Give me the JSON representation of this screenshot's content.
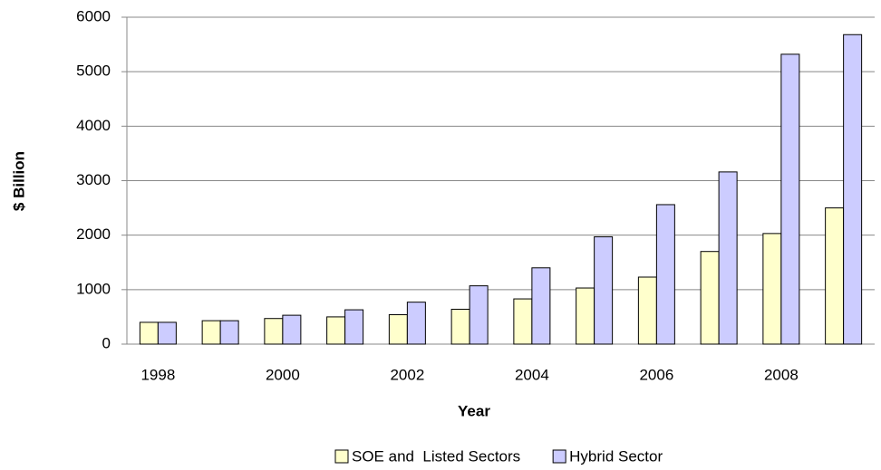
{
  "chart_data": {
    "type": "bar",
    "x_label": "Year",
    "y_label": "$ Billion",
    "categories": [
      "1998",
      null,
      "2000",
      null,
      "2002",
      null,
      "2004",
      null,
      "2006",
      null,
      "2008",
      null
    ],
    "series": [
      {
        "name": "SOE and  Listed Sectors",
        "color": "#ffffcc",
        "values": [
          400,
          430,
          470,
          500,
          540,
          640,
          830,
          1030,
          1230,
          1700,
          2030,
          2500
        ]
      },
      {
        "name": "Hybrid Sector",
        "color": "#ccccff",
        "values": [
          400,
          430,
          530,
          630,
          770,
          1070,
          1400,
          1970,
          2560,
          3160,
          5320,
          5680
        ]
      }
    ],
    "ylim": [
      0,
      6000
    ],
    "yticks": [
      0,
      1000,
      2000,
      3000,
      4000,
      5000,
      6000
    ],
    "grid": true,
    "legend": "bottom"
  }
}
